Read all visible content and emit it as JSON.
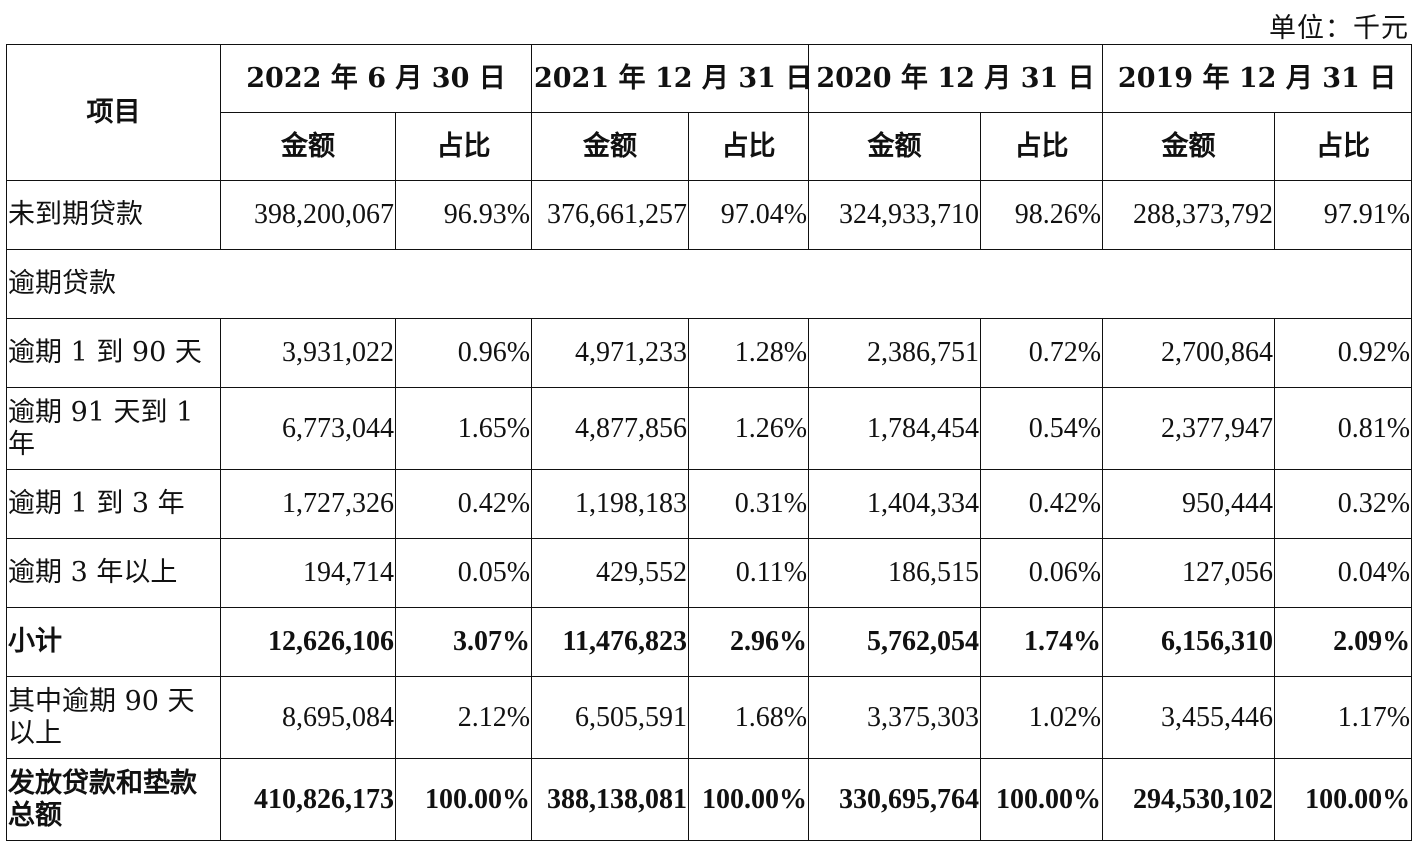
{
  "unit_label": "单位：千元",
  "header": {
    "item": "项目",
    "periods": [
      "2022 年 6 月 30 日",
      "2021 年 12 月 31 日",
      "2020 年 12 月 31 日",
      "2019 年 12 月 31 日"
    ],
    "amount": "金额",
    "share": "占比"
  },
  "rows": [
    {
      "label": "未到期贷款",
      "values": [
        "398,200,067",
        "96.93%",
        "376,661,257",
        "97.04%",
        "324,933,710",
        "98.26%",
        "288,373,792",
        "97.91%"
      ]
    },
    {
      "label": "逾期贷款",
      "values": []
    },
    {
      "label": "逾期 1 到 90 天",
      "values": [
        "3,931,022",
        "0.96%",
        "4,971,233",
        "1.28%",
        "2,386,751",
        "0.72%",
        "2,700,864",
        "0.92%"
      ]
    },
    {
      "label": "逾期 91 天到 1 年",
      "values": [
        "6,773,044",
        "1.65%",
        "4,877,856",
        "1.26%",
        "1,784,454",
        "0.54%",
        "2,377,947",
        "0.81%"
      ]
    },
    {
      "label": "逾期 1 到 3 年",
      "values": [
        "1,727,326",
        "0.42%",
        "1,198,183",
        "0.31%",
        "1,404,334",
        "0.42%",
        "950,444",
        "0.32%"
      ]
    },
    {
      "label": "逾期 3 年以上",
      "values": [
        "194,714",
        "0.05%",
        "429,552",
        "0.11%",
        "186,515",
        "0.06%",
        "127,056",
        "0.04%"
      ]
    },
    {
      "label": "小计",
      "values": [
        "12,626,106",
        "3.07%",
        "11,476,823",
        "2.96%",
        "5,762,054",
        "1.74%",
        "6,156,310",
        "2.09%"
      ]
    },
    {
      "label": "其中逾期 90 天以上",
      "values": [
        "8,695,084",
        "2.12%",
        "6,505,591",
        "1.68%",
        "3,375,303",
        "1.02%",
        "3,455,446",
        "1.17%"
      ]
    },
    {
      "label": "发放贷款和垫款总额",
      "values": [
        "410,826,173",
        "100.00%",
        "388,138,081",
        "100.00%",
        "330,695,764",
        "100.00%",
        "294,530,102",
        "100.00%"
      ]
    }
  ]
}
